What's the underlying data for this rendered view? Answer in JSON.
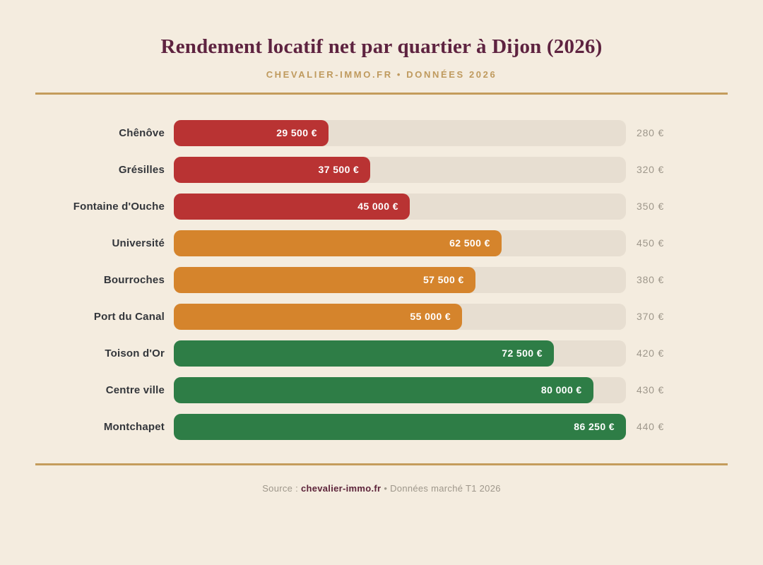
{
  "header": {
    "title": "Rendement locatif net par quartier à Dijon (2026)",
    "subtitle": "CHEVALIER-IMMO.FR • DONNÉES 2026"
  },
  "chart_data": {
    "type": "bar",
    "orientation": "horizontal",
    "title": "Rendement locatif net par quartier à Dijon (2026)",
    "subtitle": "CHEVALIER-IMMO.FR • DONNÉES 2026",
    "categories": [
      "Chênôve",
      "Grésilles",
      "Fontaine d'Ouche",
      "Université",
      "Bourroches",
      "Port du Canal",
      "Toison d'Or",
      "Centre ville",
      "Montchapet"
    ],
    "values": [
      29500,
      37500,
      45000,
      62500,
      57500,
      55000,
      72500,
      80000,
      86250
    ],
    "value_labels": [
      "29 500 €",
      "37 500 €",
      "45 000 €",
      "62 500 €",
      "57 500 €",
      "55 000 €",
      "72 500 €",
      "80 000 €",
      "86 250 €"
    ],
    "secondary_labels": [
      "280 €",
      "320 €",
      "350 €",
      "450 €",
      "380 €",
      "370 €",
      "420 €",
      "430 €",
      "440 €"
    ],
    "bar_colors": [
      "#b93333",
      "#b93333",
      "#b93333",
      "#d5842c",
      "#d5842c",
      "#d5842c",
      "#2e7d46",
      "#2e7d46",
      "#2e7d46"
    ],
    "xlim": [
      0,
      86250
    ],
    "grid": false,
    "legend": false,
    "track_color": "#e7ded1",
    "xlabel": "",
    "ylabel": ""
  },
  "footer": {
    "prefix": "Source : ",
    "source": "chevalier-immo.fr",
    "suffix": " • Données marché T1 2026"
  },
  "colors": {
    "background": "#f4ecdf",
    "rule_gold": "#c49c5c",
    "title": "#5e2340",
    "subtitle_gold": "#bf9a5e",
    "category_text": "#33363b",
    "secondary_text": "#9e978b",
    "bar_value_text": "#ffffff"
  }
}
